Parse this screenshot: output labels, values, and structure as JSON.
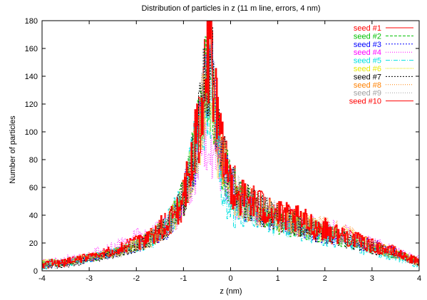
{
  "chart_data": {
    "type": "line",
    "title": "Distribution of particles in z (11 m line, errors, 4 nm)",
    "xlabel": "z (nm)",
    "ylabel": "Number of particles",
    "xlim": [
      -4,
      4
    ],
    "ylim": [
      0,
      180
    ],
    "xticks": [
      "-4",
      "-3",
      "-2",
      "-1",
      "0",
      "1",
      "2",
      "3",
      "4"
    ],
    "yticks": [
      "0",
      "20",
      "40",
      "60",
      "80",
      "100",
      "120",
      "140",
      "160",
      "180"
    ],
    "grid": false,
    "legend_position": "top-right",
    "x": [
      -4.0,
      -3.5,
      -3.0,
      -2.5,
      -2.0,
      -1.6,
      -1.3,
      -1.1,
      -1.0,
      -0.9,
      -0.8,
      -0.7,
      -0.6,
      -0.5,
      -0.45,
      -0.4,
      -0.35,
      -0.3,
      -0.2,
      -0.1,
      0.0,
      0.2,
      0.5,
      0.8,
      1.0,
      1.5,
      2.0,
      2.5,
      3.0,
      3.5,
      4.0
    ],
    "series": [
      {
        "name": "seed #1",
        "color": "#ff0000",
        "dash": "",
        "values": [
          4,
          6,
          10,
          14,
          20,
          26,
          36,
          44,
          52,
          64,
          78,
          96,
          122,
          146,
          160,
          155,
          138,
          112,
          86,
          74,
          64,
          54,
          48,
          42,
          38,
          34,
          28,
          24,
          18,
          14,
          6
        ]
      },
      {
        "name": "seed #2",
        "color": "#00c000",
        "dash": "4,2",
        "values": [
          5,
          6,
          9,
          13,
          19,
          25,
          35,
          45,
          54,
          66,
          80,
          98,
          118,
          138,
          142,
          136,
          120,
          100,
          84,
          72,
          62,
          52,
          46,
          40,
          36,
          32,
          27,
          22,
          17,
          12,
          6
        ]
      },
      {
        "name": "seed #3",
        "color": "#0000ff",
        "dash": "2,2",
        "values": [
          4,
          5,
          9,
          12,
          18,
          24,
          33,
          42,
          52,
          64,
          76,
          92,
          114,
          132,
          138,
          134,
          118,
          96,
          80,
          70,
          60,
          50,
          44,
          40,
          36,
          32,
          26,
          22,
          18,
          13,
          7
        ]
      },
      {
        "name": "seed #4",
        "color": "#ff00ff",
        "dash": "1,2",
        "values": [
          6,
          8,
          12,
          16,
          24,
          28,
          34,
          40,
          46,
          56,
          66,
          80,
          90,
          100,
          96,
          92,
          84,
          78,
          72,
          64,
          56,
          48,
          44,
          40,
          38,
          34,
          30,
          26,
          20,
          14,
          8
        ]
      },
      {
        "name": "seed #5",
        "color": "#00e0e0",
        "dash": "6,2,1,2",
        "values": [
          4,
          6,
          9,
          13,
          18,
          24,
          36,
          48,
          58,
          68,
          82,
          96,
          112,
          126,
          130,
          124,
          108,
          88,
          66,
          50,
          40,
          44,
          42,
          38,
          34,
          30,
          24,
          20,
          14,
          10,
          5
        ]
      },
      {
        "name": "seed #6",
        "color": "#e8e800",
        "dash": "1,1",
        "values": [
          5,
          6,
          10,
          13,
          19,
          25,
          34,
          43,
          52,
          64,
          78,
          94,
          112,
          128,
          134,
          130,
          116,
          96,
          80,
          70,
          60,
          50,
          46,
          42,
          38,
          34,
          28,
          24,
          18,
          12,
          6
        ]
      },
      {
        "name": "seed #7",
        "color": "#000000",
        "dash": "2,2",
        "values": [
          4,
          5,
          8,
          12,
          18,
          24,
          34,
          44,
          54,
          66,
          80,
          98,
          120,
          140,
          148,
          152,
          130,
          104,
          84,
          72,
          62,
          52,
          46,
          42,
          38,
          32,
          26,
          22,
          16,
          12,
          6
        ]
      },
      {
        "name": "seed #8",
        "color": "#ff8000",
        "dash": "1,2",
        "values": [
          5,
          6,
          9,
          13,
          19,
          25,
          35,
          44,
          53,
          65,
          78,
          96,
          116,
          134,
          140,
          136,
          120,
          98,
          82,
          72,
          62,
          52,
          46,
          42,
          38,
          34,
          30,
          26,
          18,
          12,
          6
        ]
      },
      {
        "name": "seed #9",
        "color": "#a0a0a0",
        "dash": "1,2",
        "values": [
          4,
          5,
          9,
          12,
          18,
          24,
          34,
          43,
          52,
          64,
          77,
          95,
          114,
          132,
          138,
          134,
          118,
          98,
          82,
          72,
          62,
          52,
          46,
          42,
          38,
          33,
          27,
          23,
          17,
          12,
          6
        ]
      },
      {
        "name": "seed #10",
        "color": "#ff0000",
        "dash": "",
        "values": [
          5,
          6,
          10,
          14,
          20,
          27,
          37,
          46,
          55,
          68,
          82,
          100,
          126,
          150,
          164,
          158,
          136,
          110,
          88,
          74,
          64,
          54,
          48,
          44,
          40,
          36,
          30,
          24,
          18,
          13,
          6
        ]
      }
    ]
  }
}
